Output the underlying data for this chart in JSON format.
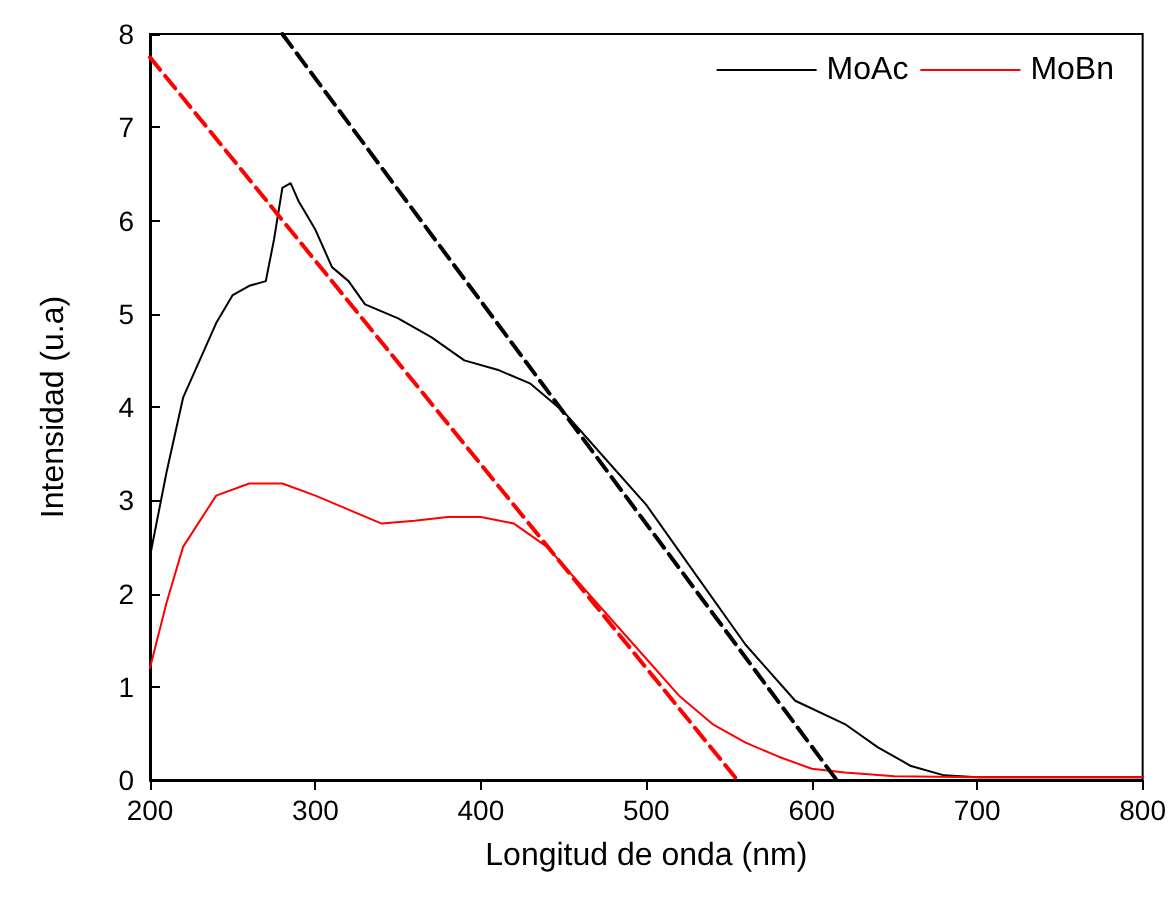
{
  "chart_data": {
    "type": "line",
    "xlabel": "Longitud de onda (nm)",
    "ylabel": "Intensidad (u.a)",
    "xlim": [
      200,
      800
    ],
    "xticks": [
      200,
      300,
      400,
      500,
      600,
      700,
      800
    ],
    "ylim": [
      0,
      8
    ],
    "yticks": [
      0,
      1,
      2,
      3,
      4,
      5,
      6,
      7,
      8
    ],
    "grid": false,
    "legend": "top right",
    "marker": "none",
    "line_style": "solid",
    "series": [
      {
        "name": "MoAc",
        "color": "#000000",
        "x": [
          200,
          210,
          220,
          230,
          240,
          250,
          260,
          270,
          275,
          280,
          285,
          290,
          300,
          310,
          320,
          330,
          350,
          370,
          390,
          410,
          430,
          450,
          470,
          500,
          530,
          560,
          590,
          620,
          640,
          660,
          680,
          700,
          800
        ],
        "values": [
          2.4,
          3.3,
          4.1,
          4.5,
          4.9,
          5.2,
          5.3,
          5.35,
          5.8,
          6.35,
          6.4,
          6.2,
          5.9,
          5.5,
          5.35,
          5.1,
          4.95,
          4.75,
          4.5,
          4.4,
          4.25,
          3.95,
          3.55,
          2.95,
          2.2,
          1.45,
          0.85,
          0.6,
          0.35,
          0.15,
          0.05,
          0.03,
          0.03
        ]
      },
      {
        "name": "MoBn",
        "color": "#ff0000",
        "x": [
          200,
          210,
          220,
          240,
          260,
          280,
          300,
          320,
          340,
          360,
          380,
          400,
          420,
          440,
          460,
          480,
          500,
          520,
          540,
          560,
          580,
          600,
          620,
          650,
          700,
          800
        ],
        "values": [
          1.2,
          1.9,
          2.5,
          3.05,
          3.18,
          3.18,
          3.05,
          2.9,
          2.75,
          2.78,
          2.82,
          2.82,
          2.75,
          2.5,
          2.1,
          1.7,
          1.3,
          0.9,
          0.6,
          0.4,
          0.25,
          0.12,
          0.08,
          0.04,
          0.03,
          0.03
        ]
      },
      {
        "type": "line",
        "color": "#000000",
        "line_style": "dashed",
        "x": [
          280,
          615
        ],
        "values": [
          8,
          0
        ]
      },
      {
        "type": "line",
        "color": "#ff0000",
        "line_style": "dashed",
        "x": [
          200,
          555
        ],
        "values": [
          7.75,
          0
        ]
      }
    ]
  }
}
